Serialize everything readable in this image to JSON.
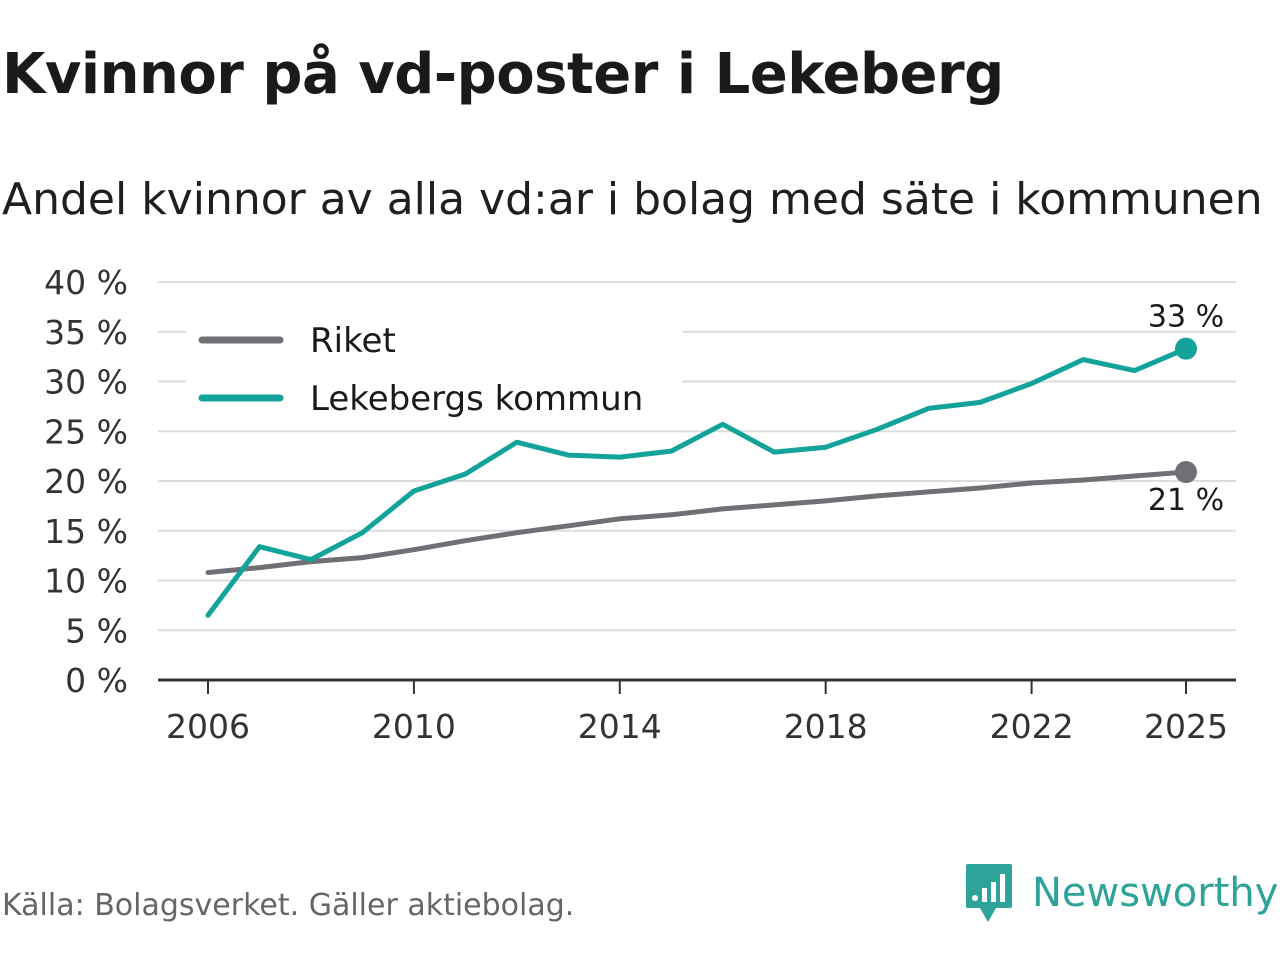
{
  "title": "Kvinnor på vd-poster i Lekeberg",
  "subtitle": "Andel kvinnor av alla vd:ar i bolag med säte i kommunen",
  "source": "Källa: Bolagsverket. Gäller aktiebolag.",
  "brand": "Newsworthy",
  "colors": {
    "riket": "#706f75",
    "lekeberg": "#13a39a",
    "grid": "#dddddd",
    "axis": "#333333",
    "brand": "#2ea39a"
  },
  "chart_data": {
    "type": "line",
    "title": "Kvinnor på vd-poster i Lekeberg",
    "subtitle": "Andel kvinnor av alla vd:ar i bolag med säte i kommunen",
    "x": [
      2006,
      2007,
      2008,
      2009,
      2010,
      2011,
      2012,
      2013,
      2014,
      2015,
      2016,
      2017,
      2018,
      2019,
      2020,
      2021,
      2022,
      2023,
      2024,
      2025
    ],
    "series": [
      {
        "name": "Riket",
        "color": "#706f75",
        "values": [
          10.8,
          11.3,
          11.9,
          12.3,
          13.1,
          14.0,
          14.8,
          15.5,
          16.2,
          16.6,
          17.2,
          17.6,
          18.0,
          18.5,
          18.9,
          19.3,
          19.8,
          20.1,
          20.5,
          20.9
        ]
      },
      {
        "name": "Lekebergs kommun",
        "color": "#13a39a",
        "values": [
          6.5,
          13.4,
          12.1,
          14.8,
          19.0,
          20.7,
          23.9,
          22.6,
          22.4,
          23.0,
          25.7,
          22.9,
          23.4,
          25.2,
          27.3,
          27.9,
          29.8,
          32.2,
          31.1,
          33.3
        ]
      }
    ],
    "end_labels": {
      "Lekebergs kommun": "33 %",
      "Riket": "21 %"
    },
    "x_ticks": [
      2006,
      2010,
      2014,
      2018,
      2022,
      2025
    ],
    "x_tick_labels": [
      "2006",
      "2010",
      "2014",
      "2018",
      "2022",
      "2025"
    ],
    "y_ticks": [
      0,
      5,
      10,
      15,
      20,
      25,
      30,
      35,
      40
    ],
    "y_tick_labels": [
      "0 %",
      "5 %",
      "10 %",
      "15 %",
      "20 %",
      "25 %",
      "30 %",
      "35 %",
      "40 %"
    ],
    "ylim": [
      0,
      40
    ],
    "xlim": [
      2006,
      2025
    ],
    "xlabel": "",
    "ylabel": "",
    "grid": true,
    "legend": "top-left"
  }
}
